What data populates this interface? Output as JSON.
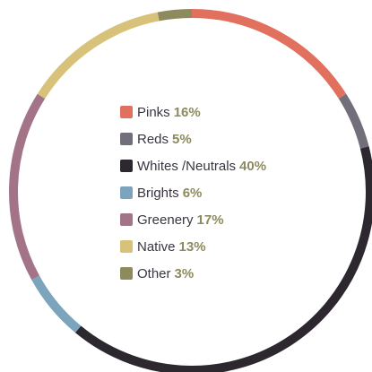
{
  "chart_data": {
    "type": "pie",
    "style": "donut-ring",
    "start": "top",
    "direction": "clockwise",
    "legend_position": "center",
    "categories": [
      "Pinks",
      "Reds",
      "Whites /Neutrals",
      "Brights",
      "Greenery",
      "Native",
      "Other"
    ],
    "values": [
      16,
      5,
      40,
      6,
      17,
      13,
      3
    ],
    "value_labels": [
      "16%",
      "5%",
      "40%",
      "6%",
      "17%",
      "13%",
      "3%"
    ],
    "colors": [
      "#e2705f",
      "#736f7a",
      "#2d2730",
      "#7ca5bd",
      "#a37487",
      "#d8c179",
      "#8d8a5d"
    ],
    "label_color": "#3a3540",
    "value_color": "#8c8a5e"
  }
}
